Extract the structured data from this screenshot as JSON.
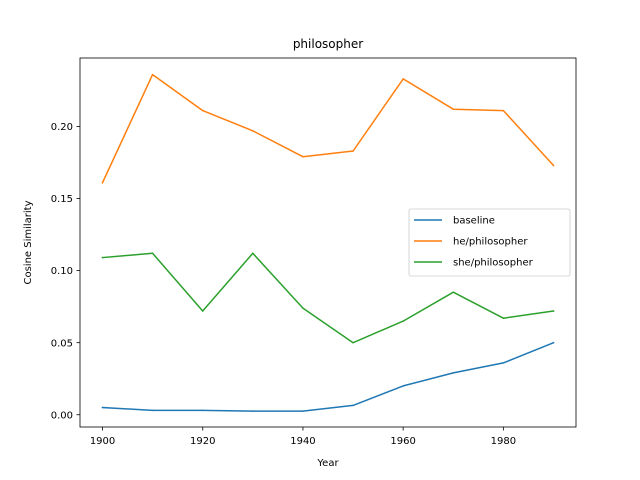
{
  "chart_data": {
    "type": "line",
    "title": "philosopher",
    "xlabel": "Year",
    "ylabel": "Cosine Similarity",
    "x": [
      1900,
      1910,
      1920,
      1930,
      1940,
      1950,
      1960,
      1970,
      1980,
      1990
    ],
    "xlim": [
      1895.5,
      1994.5
    ],
    "ylim": [
      -0.0085,
      0.2475
    ],
    "xticks": [
      1900,
      1920,
      1940,
      1960,
      1980
    ],
    "yticks": [
      0.0,
      0.05,
      0.1,
      0.15,
      0.2
    ],
    "xtick_labels": [
      "1900",
      "1920",
      "1940",
      "1960",
      "1980"
    ],
    "ytick_labels": [
      "0.00",
      "0.05",
      "0.10",
      "0.15",
      "0.20"
    ],
    "grid": false,
    "legend_position": "center-right",
    "series": [
      {
        "name": "baseline",
        "color": "#1f77b4",
        "values": [
          0.005,
          0.003,
          0.003,
          0.0025,
          0.0025,
          0.0065,
          0.02,
          0.029,
          0.036,
          0.05
        ]
      },
      {
        "name": "he/philosopher",
        "color": "#ff7f0e",
        "values": [
          0.161,
          0.236,
          0.211,
          0.197,
          0.179,
          0.183,
          0.233,
          0.212,
          0.211,
          0.173
        ]
      },
      {
        "name": "she/philosopher",
        "color": "#2ca02c",
        "values": [
          0.109,
          0.112,
          0.072,
          0.112,
          0.074,
          0.05,
          0.065,
          0.085,
          0.067,
          0.072
        ]
      }
    ]
  }
}
